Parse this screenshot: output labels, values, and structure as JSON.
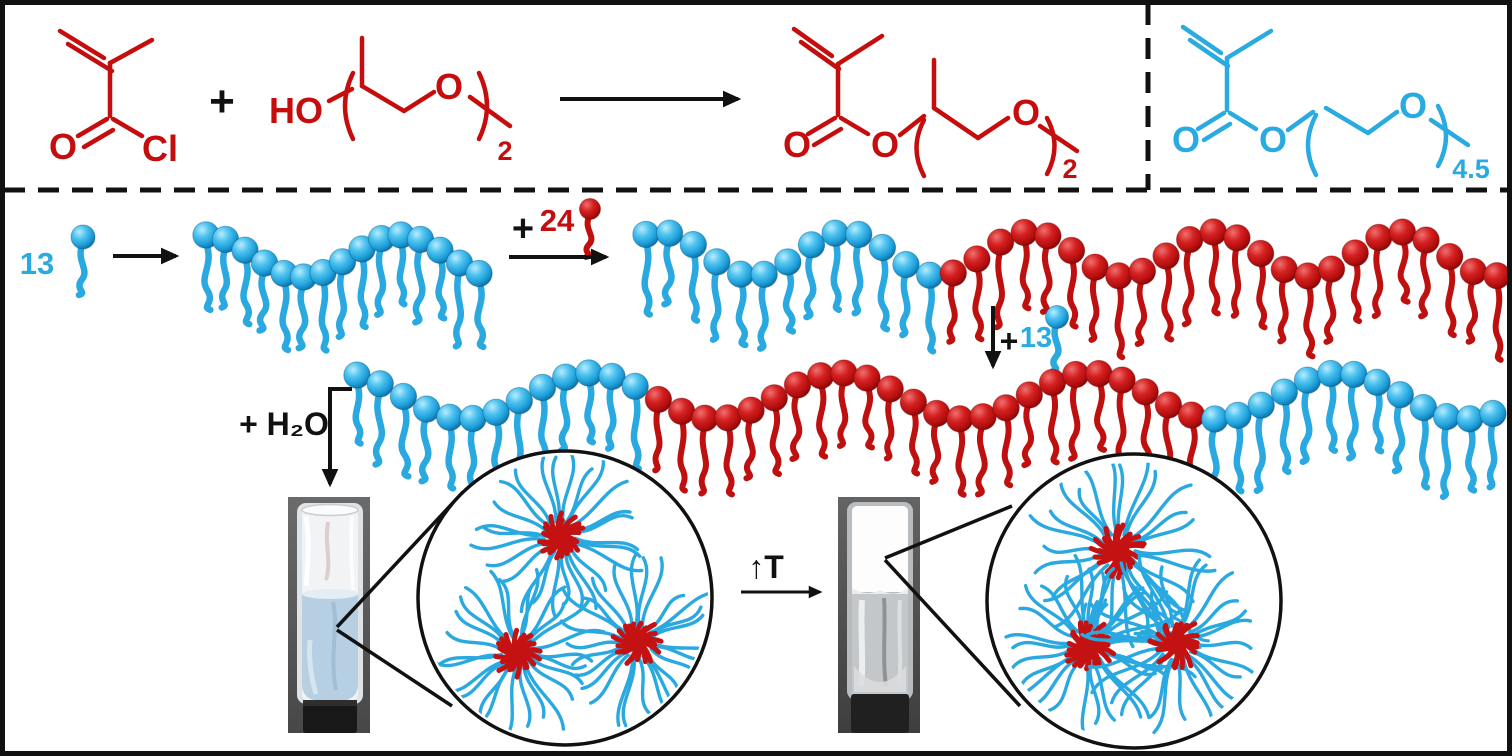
{
  "colors": {
    "red": "#c60d0d",
    "blue": "#29abe2",
    "black": "#111111",
    "bead_red": "#c41212",
    "bead_blue": "#2fb3e8",
    "liquid_blue": "#b7cfe2"
  },
  "top_panel": {
    "plus": "+",
    "reactant1": {
      "O": "O",
      "Cl": "Cl"
    },
    "reactant2": {
      "HO": "HO",
      "O": "O",
      "repeat": "2"
    },
    "product": {
      "O_carbonyl": "O",
      "O_ester": "O",
      "O_chain": "O",
      "repeat": "2"
    },
    "comonomer": {
      "O_carbonyl": "O",
      "O_ester": "O",
      "O_chain": "O",
      "repeat": "4.5"
    }
  },
  "assembly": {
    "first_block_count": "13",
    "second_step": {
      "plus": "+",
      "count": "24"
    },
    "third_step": {
      "plus": "+",
      "count": "13"
    },
    "water_label": "+ H₂O",
    "heat_label": "↑T"
  },
  "chains": {
    "homopolymer": {
      "segments": [
        {
          "color": "blue",
          "beads": 15
        }
      ]
    },
    "diblock": {
      "segments": [
        {
          "color": "blue",
          "beads": 13
        },
        {
          "color": "red",
          "beads": 24
        }
      ]
    },
    "triblock": {
      "segments": [
        {
          "color": "blue",
          "beads": 13
        },
        {
          "color": "red",
          "beads": 24
        },
        {
          "color": "blue",
          "beads": 13
        }
      ]
    }
  },
  "micelle_panels": {
    "sol": {
      "micelle_count": 3,
      "bridged": false
    },
    "gel": {
      "micelle_count": 3,
      "bridged": true
    }
  }
}
